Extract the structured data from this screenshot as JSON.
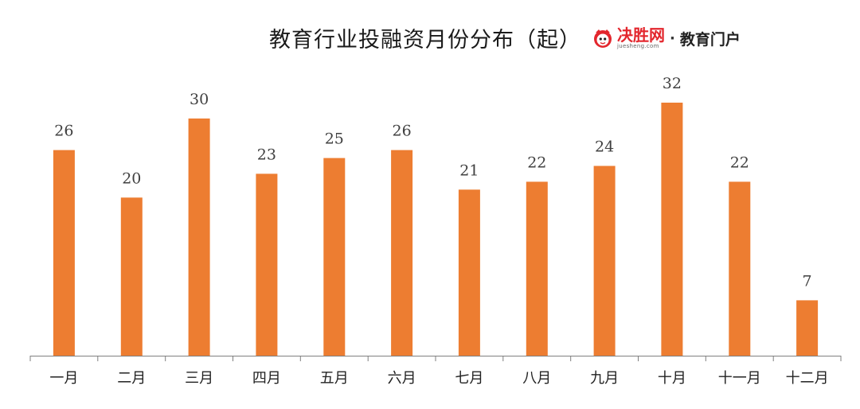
{
  "title": "教育行业投融资月份分布（起）",
  "brand": {
    "name": "决胜网",
    "url": "juesheng.com",
    "separator": "·",
    "tagline": "教育门户",
    "logo_icon": "mascot-logo-icon",
    "color": "#e3262d"
  },
  "colors": {
    "bar": "#ed7d31",
    "axis": "#7f7f7f"
  },
  "chart_data": {
    "type": "bar",
    "title": "教育行业投融资月份分布（起）",
    "xlabel": "",
    "ylabel": "",
    "categories": [
      "一月",
      "二月",
      "三月",
      "四月",
      "五月",
      "六月",
      "七月",
      "八月",
      "九月",
      "十月",
      "十一月",
      "十二月"
    ],
    "values": [
      26,
      20,
      30,
      23,
      25,
      26,
      21,
      22,
      24,
      32,
      22,
      7
    ],
    "ylim": [
      0,
      32
    ],
    "grid": false,
    "legend": "none",
    "data_labels": true
  }
}
